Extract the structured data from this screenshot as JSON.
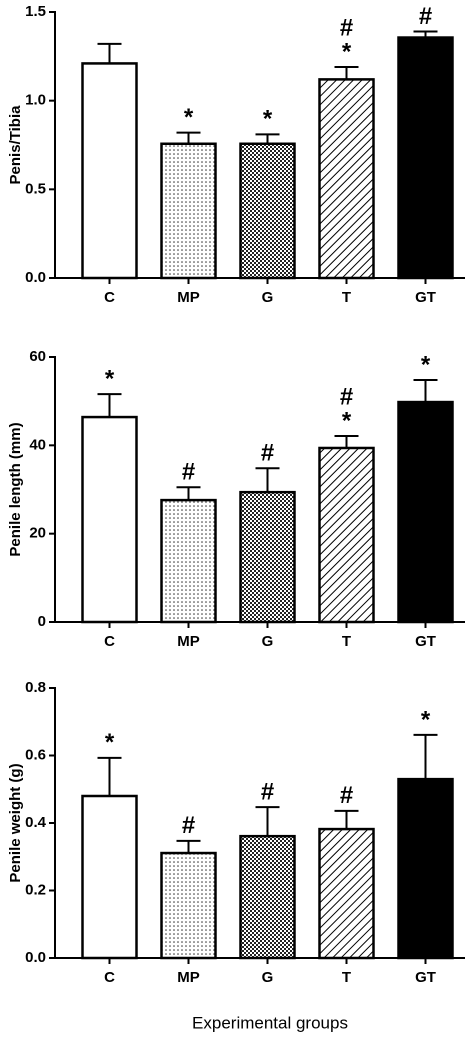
{
  "chart_data": [
    {
      "type": "bar",
      "ylabel": "Penis/Tibia",
      "categories": [
        "C",
        "MP",
        "G",
        "T",
        "GT"
      ],
      "values": [
        1.21,
        0.757,
        0.757,
        1.12,
        1.356
      ],
      "errors": [
        0.11,
        0.063,
        0.053,
        0.07,
        0.034
      ],
      "annotations": [
        [],
        [
          "*"
        ],
        [
          "*"
        ],
        [
          "*",
          "#"
        ],
        [
          "#"
        ]
      ],
      "patterns": [
        "none",
        "dots",
        "checker",
        "hatch",
        "solid"
      ],
      "ylim": [
        0,
        1.5
      ],
      "yticks": [
        {
          "value": 0,
          "label": "0.0"
        },
        {
          "value": 0.5,
          "label": "0.5"
        },
        {
          "value": 1,
          "label": "1.0"
        },
        {
          "value": 1.5,
          "label": "1.5"
        }
      ]
    },
    {
      "type": "bar",
      "ylabel": "Penile length (mm)",
      "categories": [
        "C",
        "MP",
        "G",
        "T",
        "GT"
      ],
      "values": [
        46.4,
        27.6,
        29.4,
        39.4,
        49.8
      ],
      "errors": [
        5.2,
        2.9,
        5.4,
        2.7,
        5.0
      ],
      "annotations": [
        [
          "*"
        ],
        [
          "#"
        ],
        [
          "#"
        ],
        [
          "*",
          "#"
        ],
        [
          "*"
        ]
      ],
      "patterns": [
        "none",
        "dots",
        "checker",
        "hatch",
        "solid"
      ],
      "ylim": [
        0,
        60
      ],
      "yticks": [
        0,
        20,
        40,
        60
      ]
    },
    {
      "type": "bar",
      "ylabel": "Penile weight (g)",
      "xlabel": "Experimental groups",
      "categories": [
        "C",
        "MP",
        "G",
        "T",
        "GT"
      ],
      "values": [
        0.48,
        0.311,
        0.361,
        0.382,
        0.53
      ],
      "errors": [
        0.113,
        0.036,
        0.086,
        0.054,
        0.131
      ],
      "annotations": [
        [
          "*"
        ],
        [
          "#"
        ],
        [
          "#"
        ],
        [
          "#"
        ],
        [
          "*"
        ]
      ],
      "patterns": [
        "none",
        "dots",
        "checker",
        "hatch",
        "solid"
      ],
      "ylim": [
        0,
        0.8
      ],
      "yticks": [
        {
          "value": 0,
          "label": "0.0"
        },
        {
          "value": 0.2,
          "label": "0.2"
        },
        {
          "value": 0.4,
          "label": "0.4"
        },
        {
          "value": 0.6,
          "label": "0.6"
        },
        {
          "value": 0.8,
          "label": "0.8"
        }
      ]
    }
  ]
}
